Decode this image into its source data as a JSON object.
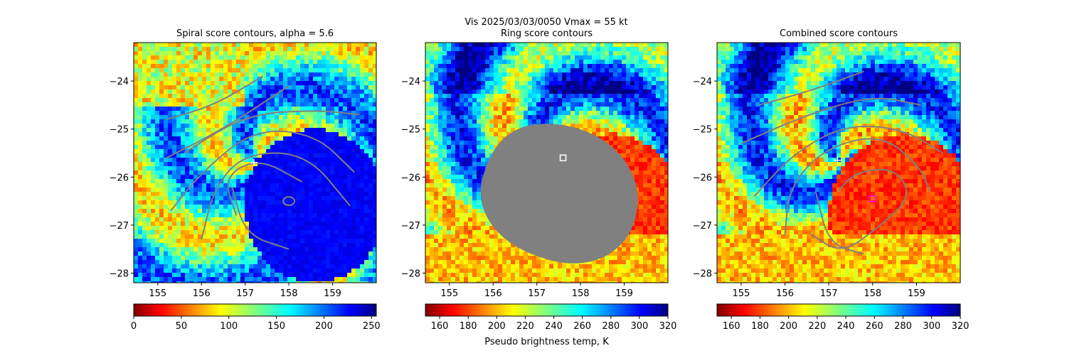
{
  "figure": {
    "suptitle_line1": "Vis  2025/03/03/0050    Vmax = 55 kt"
  },
  "chart_data": [
    {
      "type": "heatmap",
      "title": "Spiral score contours, alpha =  5.6",
      "x_ticks": [
        155,
        156,
        157,
        158,
        159
      ],
      "y_ticks": [
        -24,
        -25,
        -26,
        -27,
        -28
      ],
      "xlim": [
        154.45,
        160.0
      ],
      "ylim": [
        -28.2,
        -23.2
      ],
      "center_marker": {
        "x": 157.2,
        "y": -25.7,
        "symbol": "+"
      },
      "colorbar": {
        "colormap": "jet_r",
        "min": 0,
        "max": 255,
        "ticks": [
          0,
          50,
          100,
          150,
          200,
          250
        ],
        "label": ""
      },
      "contour_color": "#808080"
    },
    {
      "type": "heatmap",
      "title": "Ring score contours",
      "x_ticks": [
        155,
        156,
        157,
        158,
        159
      ],
      "y_ticks": [
        -24,
        -25,
        -26,
        -27,
        -28
      ],
      "xlim": [
        154.45,
        160.0
      ],
      "ylim": [
        -28.2,
        -23.2
      ],
      "center_marker": {
        "x": 157.6,
        "y": -25.6,
        "symbol": "square"
      },
      "colorbar": {
        "colormap": "jet_r",
        "min": 150,
        "max": 320,
        "ticks": [
          160,
          180,
          200,
          220,
          240,
          260,
          280,
          300,
          320
        ],
        "label": "Pseudo brightness temp, K"
      },
      "mask_color": "#808080"
    },
    {
      "type": "heatmap",
      "title": "Combined score contours",
      "x_ticks": [
        155,
        156,
        157,
        158,
        159
      ],
      "y_ticks": [
        -24,
        -25,
        -26,
        -27,
        -28
      ],
      "xlim": [
        154.45,
        160.0
      ],
      "ylim": [
        -28.2,
        -23.2
      ],
      "center_marker": {
        "x": 157.2,
        "y": -25.65,
        "symbol": "+"
      },
      "second_marker": {
        "x": 158.0,
        "y": -26.45,
        "symbol": "square"
      },
      "colorbar": {
        "colormap": "jet_r",
        "min": 150,
        "max": 320,
        "ticks": [
          160,
          180,
          200,
          220,
          240,
          260,
          280,
          300,
          320
        ],
        "label": ""
      },
      "contour_color": "#808080"
    }
  ]
}
